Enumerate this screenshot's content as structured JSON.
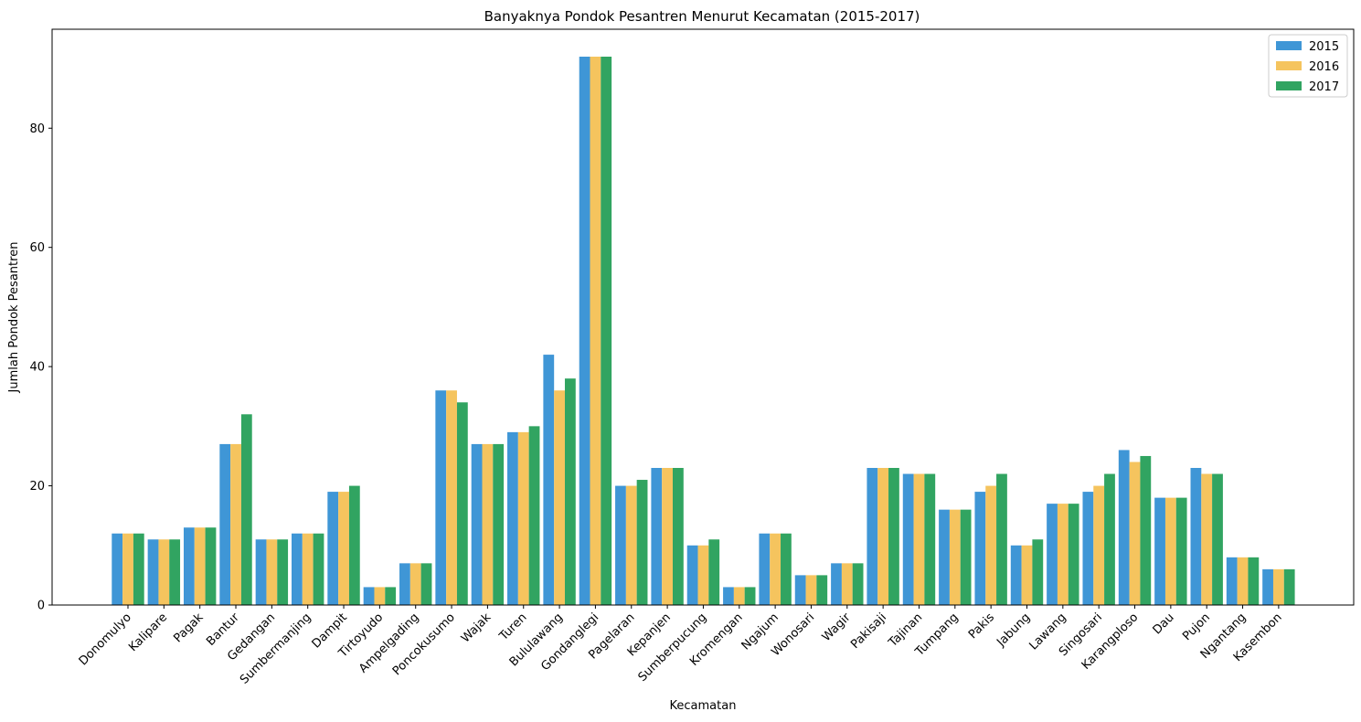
{
  "chart_data": {
    "type": "bar",
    "title": "Banyaknya Pondok Pesantren Menurut Kecamatan (2015-2017)",
    "xlabel": "Kecamatan",
    "ylabel": "Jumlah Pondok Pesantren",
    "ylim": [
      0,
      96.6
    ],
    "yticks": [
      0,
      20,
      40,
      60,
      80
    ],
    "grid": false,
    "legend_position": "top-right",
    "categories": [
      "Donomulyo",
      "Kalipare",
      "Pagak",
      "Bantur",
      "Gedangan",
      "Sumbermanjing",
      "Dampit",
      "Tirtoyudo",
      "Ampelgading",
      "Poncokusumo",
      "Wajak",
      "Turen",
      "Bululawang",
      "Gondanglegi",
      "Pagelaran",
      "Kepanjen",
      "Sumberpucung",
      "Kromengan",
      "Ngajum",
      "Wonosari",
      "Wagir",
      "Pakisaji",
      "Tajinan",
      "Tumpang",
      "Pakis",
      "Jabung",
      "Lawang",
      "Singosari",
      "Karangploso",
      "Dau",
      "Pujon",
      "Ngantang",
      "Kasembon"
    ],
    "series": [
      {
        "name": "2015",
        "color": "#3f96d6",
        "values": [
          12,
          11,
          13,
          27,
          11,
          12,
          19,
          3,
          7,
          36,
          27,
          29,
          42,
          92,
          20,
          23,
          10,
          3,
          12,
          5,
          7,
          23,
          22,
          16,
          19,
          10,
          17,
          19,
          26,
          18,
          23,
          8,
          6
        ]
      },
      {
        "name": "2016",
        "color": "#f5c45e",
        "values": [
          12,
          11,
          13,
          27,
          11,
          12,
          19,
          3,
          7,
          36,
          27,
          29,
          36,
          92,
          20,
          23,
          10,
          3,
          12,
          5,
          7,
          23,
          22,
          16,
          20,
          10,
          17,
          20,
          24,
          18,
          22,
          8,
          6
        ]
      },
      {
        "name": "2017",
        "color": "#31a461",
        "values": [
          12,
          11,
          13,
          32,
          11,
          12,
          20,
          3,
          7,
          34,
          27,
          30,
          38,
          92,
          21,
          23,
          11,
          3,
          12,
          5,
          7,
          23,
          22,
          16,
          22,
          11,
          17,
          22,
          25,
          18,
          22,
          8,
          6
        ]
      }
    ]
  }
}
